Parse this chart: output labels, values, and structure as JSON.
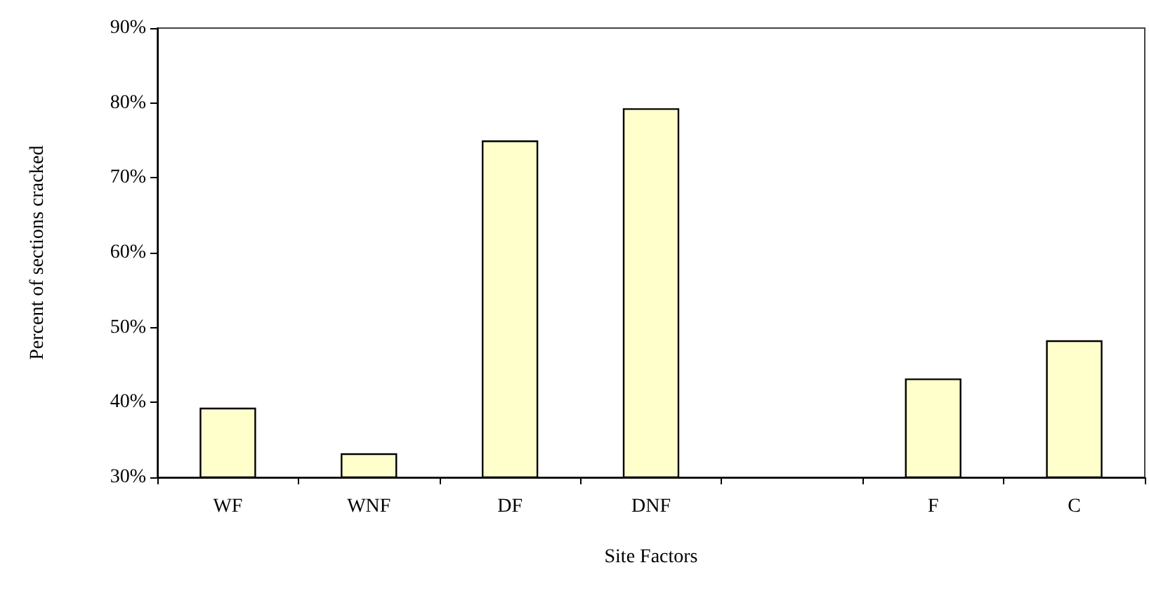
{
  "chart_data": {
    "type": "bar",
    "xlabel": "Site Factors",
    "ylabel": "Percent of sections cracked",
    "categories": [
      "WF",
      "WNF",
      "DF",
      "DNF",
      null,
      "F",
      "C"
    ],
    "values": [
      39.3,
      33.2,
      75.0,
      79.3,
      null,
      43.2,
      48.3
    ],
    "color": "#ffffcc",
    "ylim": [
      30,
      90
    ],
    "yticks": [
      {
        "value": 30,
        "label": "30%"
      },
      {
        "value": 40,
        "label": "40%"
      },
      {
        "value": 50,
        "label": "50%"
      },
      {
        "value": 60,
        "label": "60%"
      },
      {
        "value": 70,
        "label": "70%"
      },
      {
        "value": 80,
        "label": "80%"
      },
      {
        "value": 90,
        "label": "90%"
      }
    ],
    "grid": false
  }
}
